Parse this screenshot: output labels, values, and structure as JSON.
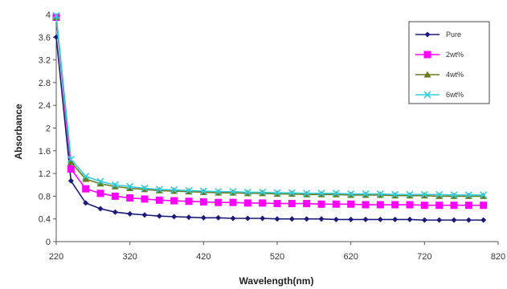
{
  "chart_data": {
    "type": "line",
    "xlabel": "Wavelength(nm)",
    "ylabel": "Absorbance",
    "xlim": [
      220,
      820
    ],
    "ylim": [
      0,
      4
    ],
    "xticks": [
      "220",
      "320",
      "420",
      "520",
      "620",
      "720",
      "820"
    ],
    "yticks": [
      "0",
      "0.4",
      "0.8",
      "1.2",
      "1.6",
      "2",
      "2.4",
      "2.8",
      "3.2",
      "3.6",
      "4"
    ],
    "grid": false,
    "legend_position": "top-right",
    "x": [
      220,
      240,
      260,
      280,
      300,
      320,
      340,
      360,
      380,
      400,
      420,
      440,
      460,
      480,
      500,
      520,
      540,
      560,
      580,
      600,
      620,
      640,
      660,
      680,
      700,
      720,
      740,
      760,
      780,
      800
    ],
    "series": [
      {
        "name": "Pure",
        "color": "#1a1a7a",
        "marker": "diamond",
        "values": [
          3.6,
          1.07,
          0.68,
          0.58,
          0.52,
          0.49,
          0.47,
          0.45,
          0.44,
          0.43,
          0.42,
          0.42,
          0.41,
          0.41,
          0.41,
          0.4,
          0.4,
          0.4,
          0.4,
          0.39,
          0.39,
          0.39,
          0.39,
          0.39,
          0.39,
          0.38,
          0.38,
          0.38,
          0.38,
          0.38
        ]
      },
      {
        "name": "2wt%",
        "color": "#ff00ff",
        "marker": "square",
        "values": [
          3.95,
          1.28,
          0.93,
          0.85,
          0.8,
          0.77,
          0.75,
          0.73,
          0.72,
          0.71,
          0.7,
          0.69,
          0.69,
          0.68,
          0.68,
          0.67,
          0.67,
          0.67,
          0.66,
          0.66,
          0.66,
          0.65,
          0.65,
          0.65,
          0.65,
          0.64,
          0.64,
          0.64,
          0.64,
          0.64
        ]
      },
      {
        "name": "4wt%",
        "color": "#6b7a1a",
        "marker": "triangle",
        "values": [
          3.95,
          1.4,
          1.1,
          1.02,
          0.97,
          0.94,
          0.92,
          0.9,
          0.89,
          0.88,
          0.87,
          0.86,
          0.86,
          0.85,
          0.85,
          0.84,
          0.84,
          0.83,
          0.83,
          0.83,
          0.82,
          0.82,
          0.82,
          0.81,
          0.81,
          0.81,
          0.8,
          0.8,
          0.8,
          0.8
        ]
      },
      {
        "name": "6wt%",
        "color": "#33ccdd",
        "marker": "cross",
        "values": [
          3.98,
          1.45,
          1.15,
          1.06,
          1.0,
          0.97,
          0.94,
          0.92,
          0.91,
          0.9,
          0.89,
          0.88,
          0.88,
          0.87,
          0.87,
          0.86,
          0.86,
          0.85,
          0.85,
          0.85,
          0.84,
          0.84,
          0.84,
          0.83,
          0.83,
          0.83,
          0.83,
          0.82,
          0.82,
          0.82
        ]
      }
    ]
  }
}
